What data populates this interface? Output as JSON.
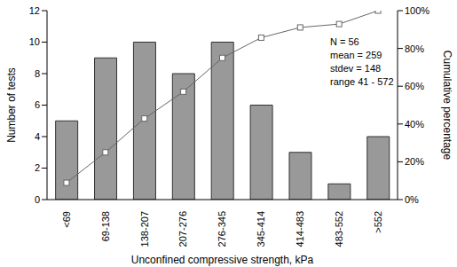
{
  "chart_data": {
    "type": "bar",
    "categories": [
      "<69",
      "69-138",
      "138-207",
      "207-276",
      "276-345",
      "345-414",
      "414-483",
      "483-552",
      ">552"
    ],
    "series": [
      {
        "type": "bar",
        "color": "#999999",
        "values": [
          5,
          9,
          10,
          8,
          10,
          6,
          3,
          1,
          4
        ]
      },
      {
        "type": "line",
        "axis": "y2",
        "color": "#666666",
        "marker": "square",
        "values": [
          8.9,
          25,
          42.9,
          57.1,
          75,
          85.7,
          91.1,
          92.9,
          100
        ]
      }
    ],
    "xlabel": "Unconfined compressive strength, kPa",
    "ylabel": "Number of tests",
    "y2label": "Cumulative percentage",
    "ylim": [
      0,
      12
    ],
    "yticks": [
      0,
      2,
      4,
      6,
      8,
      10,
      12
    ],
    "y2lim": [
      0,
      100
    ],
    "y2ticks": [
      {
        "value": 0,
        "label": "0%"
      },
      {
        "value": 20,
        "label": "20%"
      },
      {
        "value": 40,
        "label": "40%"
      },
      {
        "value": 60,
        "label": "60%"
      },
      {
        "value": 80,
        "label": "80%"
      },
      {
        "value": 100,
        "label": "100%"
      }
    ],
    "annotations": [
      "N = 56",
      "mean = 259",
      "stdev = 148",
      "range 41 - 572"
    ],
    "grid": false
  }
}
